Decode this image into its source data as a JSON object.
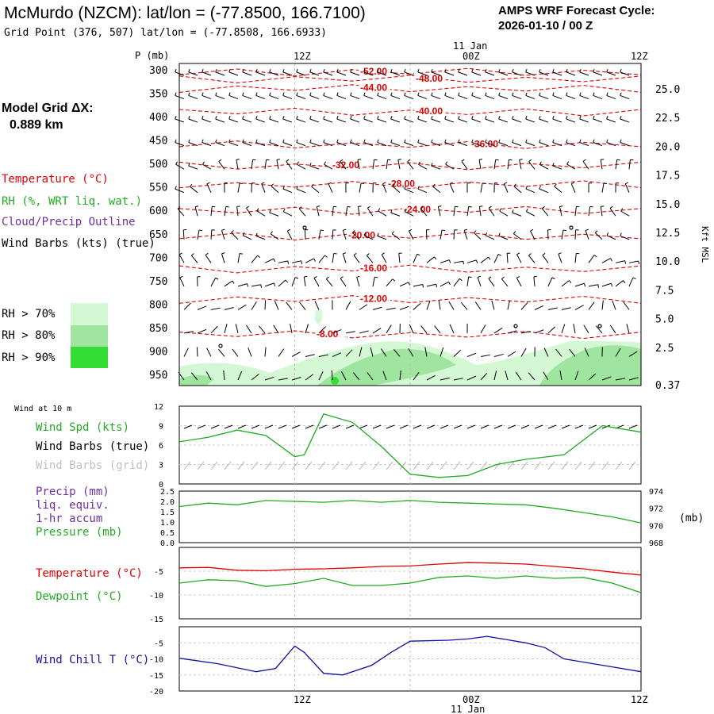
{
  "header": {
    "station": "McMurdo (NZCM):  lat/lon = (-77.8500, 166.7100)",
    "grid_point": "Grid Point (376, 507) lat/lon = (-77.8508, 166.6933)",
    "cycle_label": "AMPS WRF Forecast Cycle:",
    "cycle_value": "2026-01-10 / 00  Z"
  },
  "model_grid": {
    "label": "Model Grid ΔX:",
    "value": "0.889 km"
  },
  "time_axis": {
    "ticks": [
      "12Z",
      "00Z",
      "12Z"
    ],
    "date": "11 Jan"
  },
  "colors": {
    "temperature": "#e00000",
    "rh": "#22aa22",
    "cloud": "#7030a0",
    "wind": "#000000",
    "grid_wind": "#b0b0b0",
    "wind_chill": "#1010a0",
    "rh70": "#d4f7d4",
    "rh80": "#9fe59f",
    "rh90": "#33dd33"
  },
  "chart_data": [
    {
      "type": "time-height cross section",
      "ylabel": "P (mb)",
      "pressure_ticks": [
        "300",
        "350",
        "400",
        "450",
        "500",
        "550",
        "600",
        "650",
        "700",
        "750",
        "800",
        "850",
        "900",
        "950"
      ],
      "height_label": "Kft MSL",
      "height_ticks": [
        "25.0",
        "22.5",
        "20.0",
        "17.5",
        "15.0",
        "12.5",
        "10.0",
        "7.5",
        "5.0",
        "2.5",
        "0.37"
      ],
      "legend": {
        "temperature": "Temperature (°C)",
        "rh": "RH (%, WRT liq. wat.)",
        "cloud": "Cloud/Precip Outline",
        "wind": "Wind Barbs (kts) (true)"
      },
      "rh_legend": [
        "RH > 70%",
        "RH > 80%",
        "RH > 90%"
      ],
      "isotherms": [
        {
          "label": "-52.00",
          "p": 305
        },
        {
          "label": "-48.00",
          "p": 320
        },
        {
          "label": "-44.00",
          "p": 340
        },
        {
          "label": "-40.00",
          "p": 390
        },
        {
          "label": "-36.00",
          "p": 460
        },
        {
          "label": "-32.00",
          "p": 505
        },
        {
          "label": "-28.00",
          "p": 545
        },
        {
          "label": "-24.00",
          "p": 600
        },
        {
          "label": "-20.00",
          "p": 655
        },
        {
          "label": "-16.00",
          "p": 725
        },
        {
          "label": "-12.00",
          "p": 790
        },
        {
          "label": "-8.00",
          "p": 865
        }
      ]
    },
    {
      "type": "line",
      "title": "Wind at 10 m",
      "labels": [
        "Wind Spd (kts)",
        "Wind Barbs (true)",
        "Wind Barbs (grid)"
      ],
      "ylim": [
        0,
        12
      ],
      "yticks": [
        "12",
        "9",
        "6",
        "3",
        "0"
      ],
      "x_hours": [
        0,
        3,
        6,
        9,
        12,
        13,
        15,
        18,
        21,
        24,
        27,
        30,
        33,
        36,
        40,
        44,
        48
      ],
      "wind_speed_kts": [
        6.5,
        7.2,
        8.3,
        7.5,
        4.2,
        4.5,
        10.8,
        9.5,
        5.8,
        1.5,
        1.0,
        1.3,
        3.0,
        3.8,
        4.5,
        9.0,
        8.0
      ]
    },
    {
      "type": "line",
      "labels": [
        "Precip (mm)",
        "liq. equiv.",
        "1-hr accum",
        "Pressure (mb)"
      ],
      "precip_ticks": [
        "2.5",
        "2.0",
        "1.5",
        "1.0",
        "0.5",
        "0.0"
      ],
      "pressure_ticks": [
        "974",
        "972",
        "970",
        "968"
      ],
      "pressure_unit": "(mb)",
      "ylim_precip": [
        0,
        2.5
      ],
      "ylim_pressure": [
        968,
        974
      ],
      "x_hours": [
        0,
        3,
        6,
        9,
        12,
        15,
        18,
        21,
        24,
        27,
        30,
        33,
        36,
        39,
        42,
        45,
        48
      ],
      "pressure_mb": [
        972.2,
        972.6,
        972.4,
        972.9,
        972.8,
        972.7,
        972.9,
        972.7,
        972.9,
        972.7,
        972.6,
        972.5,
        972.4,
        972.0,
        971.5,
        971.0,
        970.3
      ],
      "precip_mm": [
        0,
        0,
        0,
        0,
        0,
        0,
        0,
        0,
        0,
        0,
        0,
        0,
        0,
        0,
        0,
        0,
        0
      ]
    },
    {
      "type": "line",
      "labels": [
        "Temperature (°C)",
        "Dewpoint (°C)"
      ],
      "ylim": [
        -15,
        0
      ],
      "yticks": [
        "-5",
        "-10",
        "-15"
      ],
      "x_hours": [
        0,
        3,
        6,
        9,
        12,
        15,
        18,
        21,
        24,
        27,
        30,
        33,
        36,
        39,
        42,
        45,
        48
      ],
      "temperature_c": [
        -4.3,
        -4.2,
        -4.8,
        -4.9,
        -4.6,
        -4.5,
        -4.3,
        -4.0,
        -3.9,
        -3.5,
        -3.2,
        -3.3,
        -3.5,
        -4.0,
        -4.5,
        -5.2,
        -5.8
      ],
      "dewpoint_c": [
        -7.5,
        -6.8,
        -7.0,
        -8.2,
        -7.6,
        -6.5,
        -8.0,
        -8.0,
        -7.5,
        -6.3,
        -6.0,
        -6.5,
        -6.0,
        -6.5,
        -6.3,
        -7.5,
        -9.5
      ]
    },
    {
      "type": "line",
      "labels": [
        "Wind Chill T (°C)"
      ],
      "ylim": [
        -20,
        0
      ],
      "yticks": [
        "-5",
        "-10",
        "-15",
        "-20"
      ],
      "x_hours": [
        0,
        4,
        8,
        10,
        12,
        13,
        15,
        17,
        20,
        22,
        24,
        28,
        30,
        32,
        36,
        38,
        40,
        44,
        48
      ],
      "wind_chill_c": [
        -9.8,
        -11.5,
        -14.0,
        -13.0,
        -6.0,
        -8.0,
        -14.5,
        -15.0,
        -12.0,
        -8.0,
        -4.5,
        -4.2,
        -3.8,
        -3.0,
        -5.0,
        -6.5,
        -10.0,
        -12.0,
        -14.0
      ]
    }
  ]
}
